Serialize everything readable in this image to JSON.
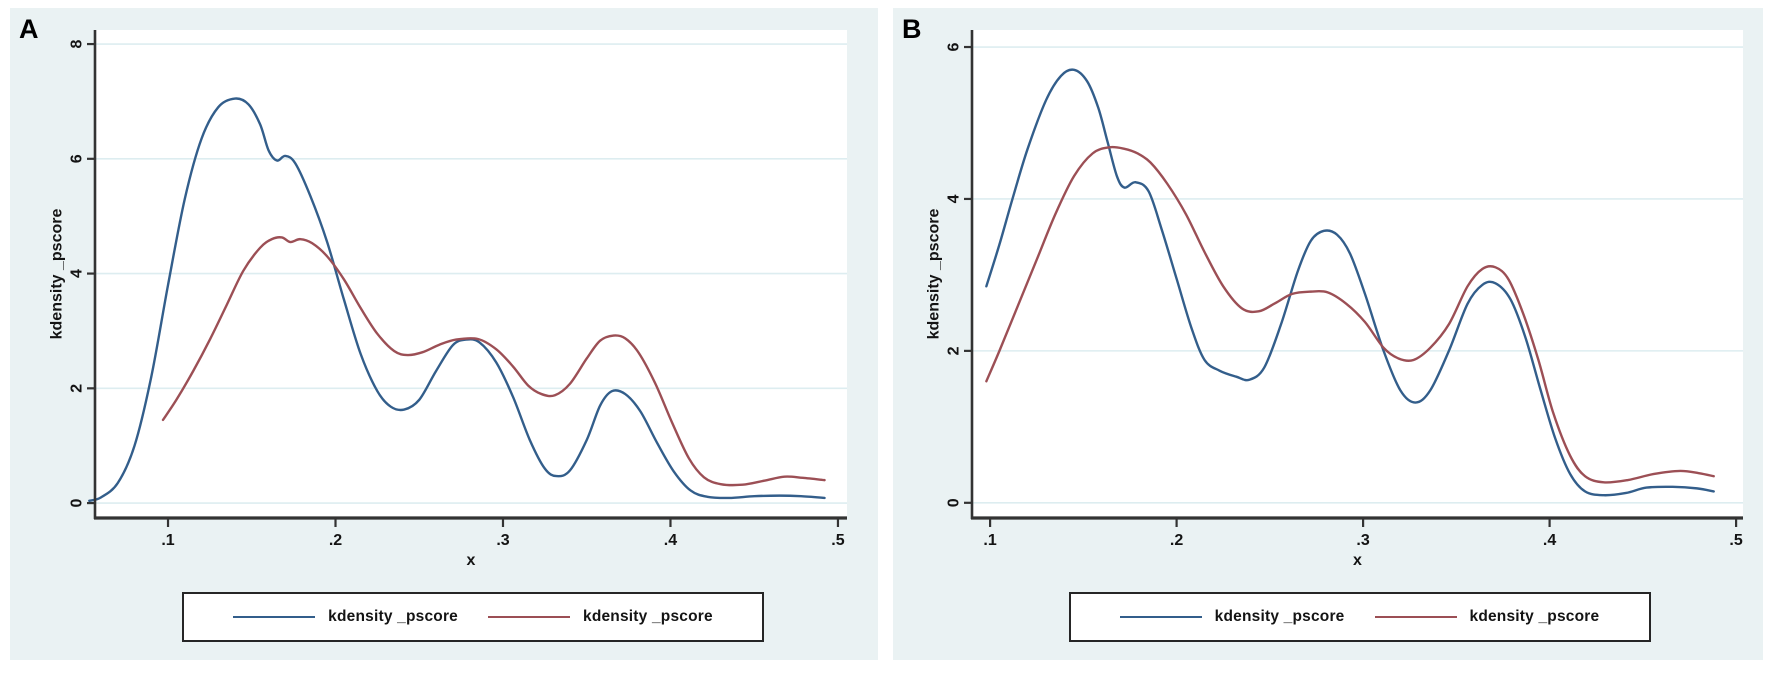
{
  "figure_title": "",
  "colors": {
    "graph_background": "#eaf2f3",
    "plot_background": "#ffffff",
    "gridline": "#ddedf0",
    "axis": "#333333",
    "text": "#141414",
    "navy_series": "#335e8b",
    "maroon_series": "#9c4f55",
    "legend_border": "#262626"
  },
  "chart_data": [
    {
      "type": "line",
      "panel_label": "A",
      "xlabel": "x",
      "ylabel": "kdensity _pscore",
      "grid": true,
      "legend_position": "bottom",
      "x_range": [
        0.0564,
        0.5054
      ],
      "y_range": [
        -0.26,
        8.245
      ],
      "x_ticks": [
        {
          "v": 0.1,
          "label": ".1"
        },
        {
          "v": 0.2,
          "label": ".2"
        },
        {
          "v": 0.3,
          "label": ".3"
        },
        {
          "v": 0.4,
          "label": ".4"
        },
        {
          "v": 0.5,
          "label": ".5"
        }
      ],
      "y_ticks": [
        {
          "v": 0,
          "label": "0"
        },
        {
          "v": 2,
          "label": "2"
        },
        {
          "v": 4,
          "label": "4"
        },
        {
          "v": 6,
          "label": "6"
        },
        {
          "v": 8,
          "label": "8"
        }
      ],
      "legend": [
        {
          "label": "kdensity _pscore",
          "color": "#335e8b"
        },
        {
          "label": "kdensity _pscore",
          "color": "#9c4f55"
        }
      ],
      "series": [
        {
          "name": "kdensity _pscore",
          "color": "#335e8b",
          "points": [
            [
              0.053,
              0.04
            ],
            [
              0.06,
              0.1
            ],
            [
              0.07,
              0.35
            ],
            [
              0.08,
              1.0
            ],
            [
              0.09,
              2.2
            ],
            [
              0.1,
              3.8
            ],
            [
              0.11,
              5.3
            ],
            [
              0.12,
              6.35
            ],
            [
              0.13,
              6.9
            ],
            [
              0.14,
              7.05
            ],
            [
              0.148,
              6.95
            ],
            [
              0.155,
              6.6
            ],
            [
              0.16,
              6.15
            ],
            [
              0.165,
              5.97
            ],
            [
              0.17,
              6.05
            ],
            [
              0.176,
              5.92
            ],
            [
              0.185,
              5.35
            ],
            [
              0.195,
              4.55
            ],
            [
              0.205,
              3.55
            ],
            [
              0.215,
              2.6
            ],
            [
              0.225,
              1.95
            ],
            [
              0.233,
              1.68
            ],
            [
              0.241,
              1.63
            ],
            [
              0.25,
              1.8
            ],
            [
              0.26,
              2.3
            ],
            [
              0.27,
              2.75
            ],
            [
              0.278,
              2.85
            ],
            [
              0.286,
              2.8
            ],
            [
              0.296,
              2.45
            ],
            [
              0.306,
              1.85
            ],
            [
              0.316,
              1.1
            ],
            [
              0.325,
              0.6
            ],
            [
              0.332,
              0.47
            ],
            [
              0.34,
              0.57
            ],
            [
              0.35,
              1.1
            ],
            [
              0.358,
              1.7
            ],
            [
              0.365,
              1.95
            ],
            [
              0.373,
              1.9
            ],
            [
              0.382,
              1.6
            ],
            [
              0.392,
              1.05
            ],
            [
              0.402,
              0.55
            ],
            [
              0.412,
              0.22
            ],
            [
              0.422,
              0.11
            ],
            [
              0.435,
              0.09
            ],
            [
              0.45,
              0.12
            ],
            [
              0.465,
              0.13
            ],
            [
              0.478,
              0.12
            ],
            [
              0.492,
              0.09
            ]
          ]
        },
        {
          "name": "kdensity _pscore",
          "color": "#9c4f55",
          "points": [
            [
              0.097,
              1.45
            ],
            [
              0.105,
              1.8
            ],
            [
              0.115,
              2.3
            ],
            [
              0.125,
              2.85
            ],
            [
              0.135,
              3.45
            ],
            [
              0.145,
              4.05
            ],
            [
              0.155,
              4.45
            ],
            [
              0.162,
              4.6
            ],
            [
              0.168,
              4.63
            ],
            [
              0.173,
              4.55
            ],
            [
              0.179,
              4.6
            ],
            [
              0.186,
              4.53
            ],
            [
              0.195,
              4.3
            ],
            [
              0.205,
              3.9
            ],
            [
              0.215,
              3.4
            ],
            [
              0.225,
              2.95
            ],
            [
              0.235,
              2.65
            ],
            [
              0.243,
              2.58
            ],
            [
              0.252,
              2.63
            ],
            [
              0.262,
              2.76
            ],
            [
              0.272,
              2.85
            ],
            [
              0.285,
              2.86
            ],
            [
              0.296,
              2.68
            ],
            [
              0.306,
              2.38
            ],
            [
              0.315,
              2.05
            ],
            [
              0.323,
              1.9
            ],
            [
              0.331,
              1.88
            ],
            [
              0.34,
              2.08
            ],
            [
              0.35,
              2.52
            ],
            [
              0.358,
              2.83
            ],
            [
              0.366,
              2.92
            ],
            [
              0.373,
              2.87
            ],
            [
              0.381,
              2.62
            ],
            [
              0.391,
              2.08
            ],
            [
              0.401,
              1.4
            ],
            [
              0.411,
              0.78
            ],
            [
              0.42,
              0.45
            ],
            [
              0.43,
              0.33
            ],
            [
              0.443,
              0.32
            ],
            [
              0.456,
              0.39
            ],
            [
              0.468,
              0.46
            ],
            [
              0.479,
              0.44
            ],
            [
              0.492,
              0.4
            ]
          ]
        }
      ]
    },
    {
      "type": "line",
      "panel_label": "B",
      "xlabel": "x",
      "ylabel": "kdensity _pscore",
      "grid": true,
      "legend_position": "bottom",
      "x_range": [
        0.0903,
        0.5037
      ],
      "y_range": [
        -0.2,
        6.224
      ],
      "x_ticks": [
        {
          "v": 0.1,
          "label": ".1"
        },
        {
          "v": 0.2,
          "label": ".2"
        },
        {
          "v": 0.3,
          "label": ".3"
        },
        {
          "v": 0.4,
          "label": ".4"
        },
        {
          "v": 0.5,
          "label": ".5"
        }
      ],
      "y_ticks": [
        {
          "v": 0,
          "label": "0"
        },
        {
          "v": 2,
          "label": "2"
        },
        {
          "v": 4,
          "label": "4"
        },
        {
          "v": 6,
          "label": "6"
        }
      ],
      "legend": [
        {
          "label": "kdensity _pscore",
          "color": "#335e8b"
        },
        {
          "label": "kdensity _pscore",
          "color": "#9c4f55"
        }
      ],
      "series": [
        {
          "name": "kdensity _pscore",
          "color": "#335e8b",
          "points": [
            [
              0.098,
              2.85
            ],
            [
              0.105,
              3.4
            ],
            [
              0.112,
              4.0
            ],
            [
              0.12,
              4.65
            ],
            [
              0.13,
              5.3
            ],
            [
              0.138,
              5.62
            ],
            [
              0.145,
              5.7
            ],
            [
              0.152,
              5.55
            ],
            [
              0.158,
              5.2
            ],
            [
              0.163,
              4.75
            ],
            [
              0.168,
              4.3
            ],
            [
              0.172,
              4.15
            ],
            [
              0.178,
              4.22
            ],
            [
              0.185,
              4.1
            ],
            [
              0.192,
              3.6
            ],
            [
              0.2,
              2.95
            ],
            [
              0.208,
              2.3
            ],
            [
              0.215,
              1.88
            ],
            [
              0.223,
              1.74
            ],
            [
              0.232,
              1.66
            ],
            [
              0.239,
              1.62
            ],
            [
              0.247,
              1.78
            ],
            [
              0.256,
              2.35
            ],
            [
              0.265,
              3.05
            ],
            [
              0.272,
              3.45
            ],
            [
              0.279,
              3.58
            ],
            [
              0.286,
              3.53
            ],
            [
              0.293,
              3.28
            ],
            [
              0.301,
              2.75
            ],
            [
              0.311,
              2.0
            ],
            [
              0.32,
              1.48
            ],
            [
              0.328,
              1.32
            ],
            [
              0.336,
              1.48
            ],
            [
              0.346,
              2.0
            ],
            [
              0.356,
              2.62
            ],
            [
              0.364,
              2.87
            ],
            [
              0.371,
              2.89
            ],
            [
              0.379,
              2.68
            ],
            [
              0.387,
              2.18
            ],
            [
              0.395,
              1.5
            ],
            [
              0.403,
              0.85
            ],
            [
              0.411,
              0.38
            ],
            [
              0.419,
              0.15
            ],
            [
              0.429,
              0.1
            ],
            [
              0.441,
              0.13
            ],
            [
              0.452,
              0.2
            ],
            [
              0.466,
              0.21
            ],
            [
              0.479,
              0.19
            ],
            [
              0.488,
              0.15
            ]
          ]
        },
        {
          "name": "kdensity _pscore",
          "color": "#9c4f55",
          "points": [
            [
              0.098,
              1.6
            ],
            [
              0.105,
              2.0
            ],
            [
              0.115,
              2.6
            ],
            [
              0.125,
              3.2
            ],
            [
              0.135,
              3.8
            ],
            [
              0.145,
              4.3
            ],
            [
              0.155,
              4.6
            ],
            [
              0.164,
              4.68
            ],
            [
              0.172,
              4.66
            ],
            [
              0.179,
              4.6
            ],
            [
              0.186,
              4.48
            ],
            [
              0.195,
              4.2
            ],
            [
              0.205,
              3.8
            ],
            [
              0.215,
              3.3
            ],
            [
              0.225,
              2.85
            ],
            [
              0.235,
              2.56
            ],
            [
              0.244,
              2.52
            ],
            [
              0.253,
              2.63
            ],
            [
              0.262,
              2.75
            ],
            [
              0.272,
              2.78
            ],
            [
              0.281,
              2.77
            ],
            [
              0.291,
              2.62
            ],
            [
              0.301,
              2.38
            ],
            [
              0.311,
              2.04
            ],
            [
              0.319,
              1.9
            ],
            [
              0.327,
              1.88
            ],
            [
              0.336,
              2.04
            ],
            [
              0.346,
              2.35
            ],
            [
              0.356,
              2.85
            ],
            [
              0.364,
              3.08
            ],
            [
              0.371,
              3.1
            ],
            [
              0.378,
              2.94
            ],
            [
              0.386,
              2.48
            ],
            [
              0.394,
              1.88
            ],
            [
              0.402,
              1.18
            ],
            [
              0.411,
              0.62
            ],
            [
              0.419,
              0.35
            ],
            [
              0.429,
              0.27
            ],
            [
              0.442,
              0.3
            ],
            [
              0.456,
              0.38
            ],
            [
              0.47,
              0.42
            ],
            [
              0.48,
              0.39
            ],
            [
              0.488,
              0.35
            ]
          ]
        }
      ]
    }
  ]
}
